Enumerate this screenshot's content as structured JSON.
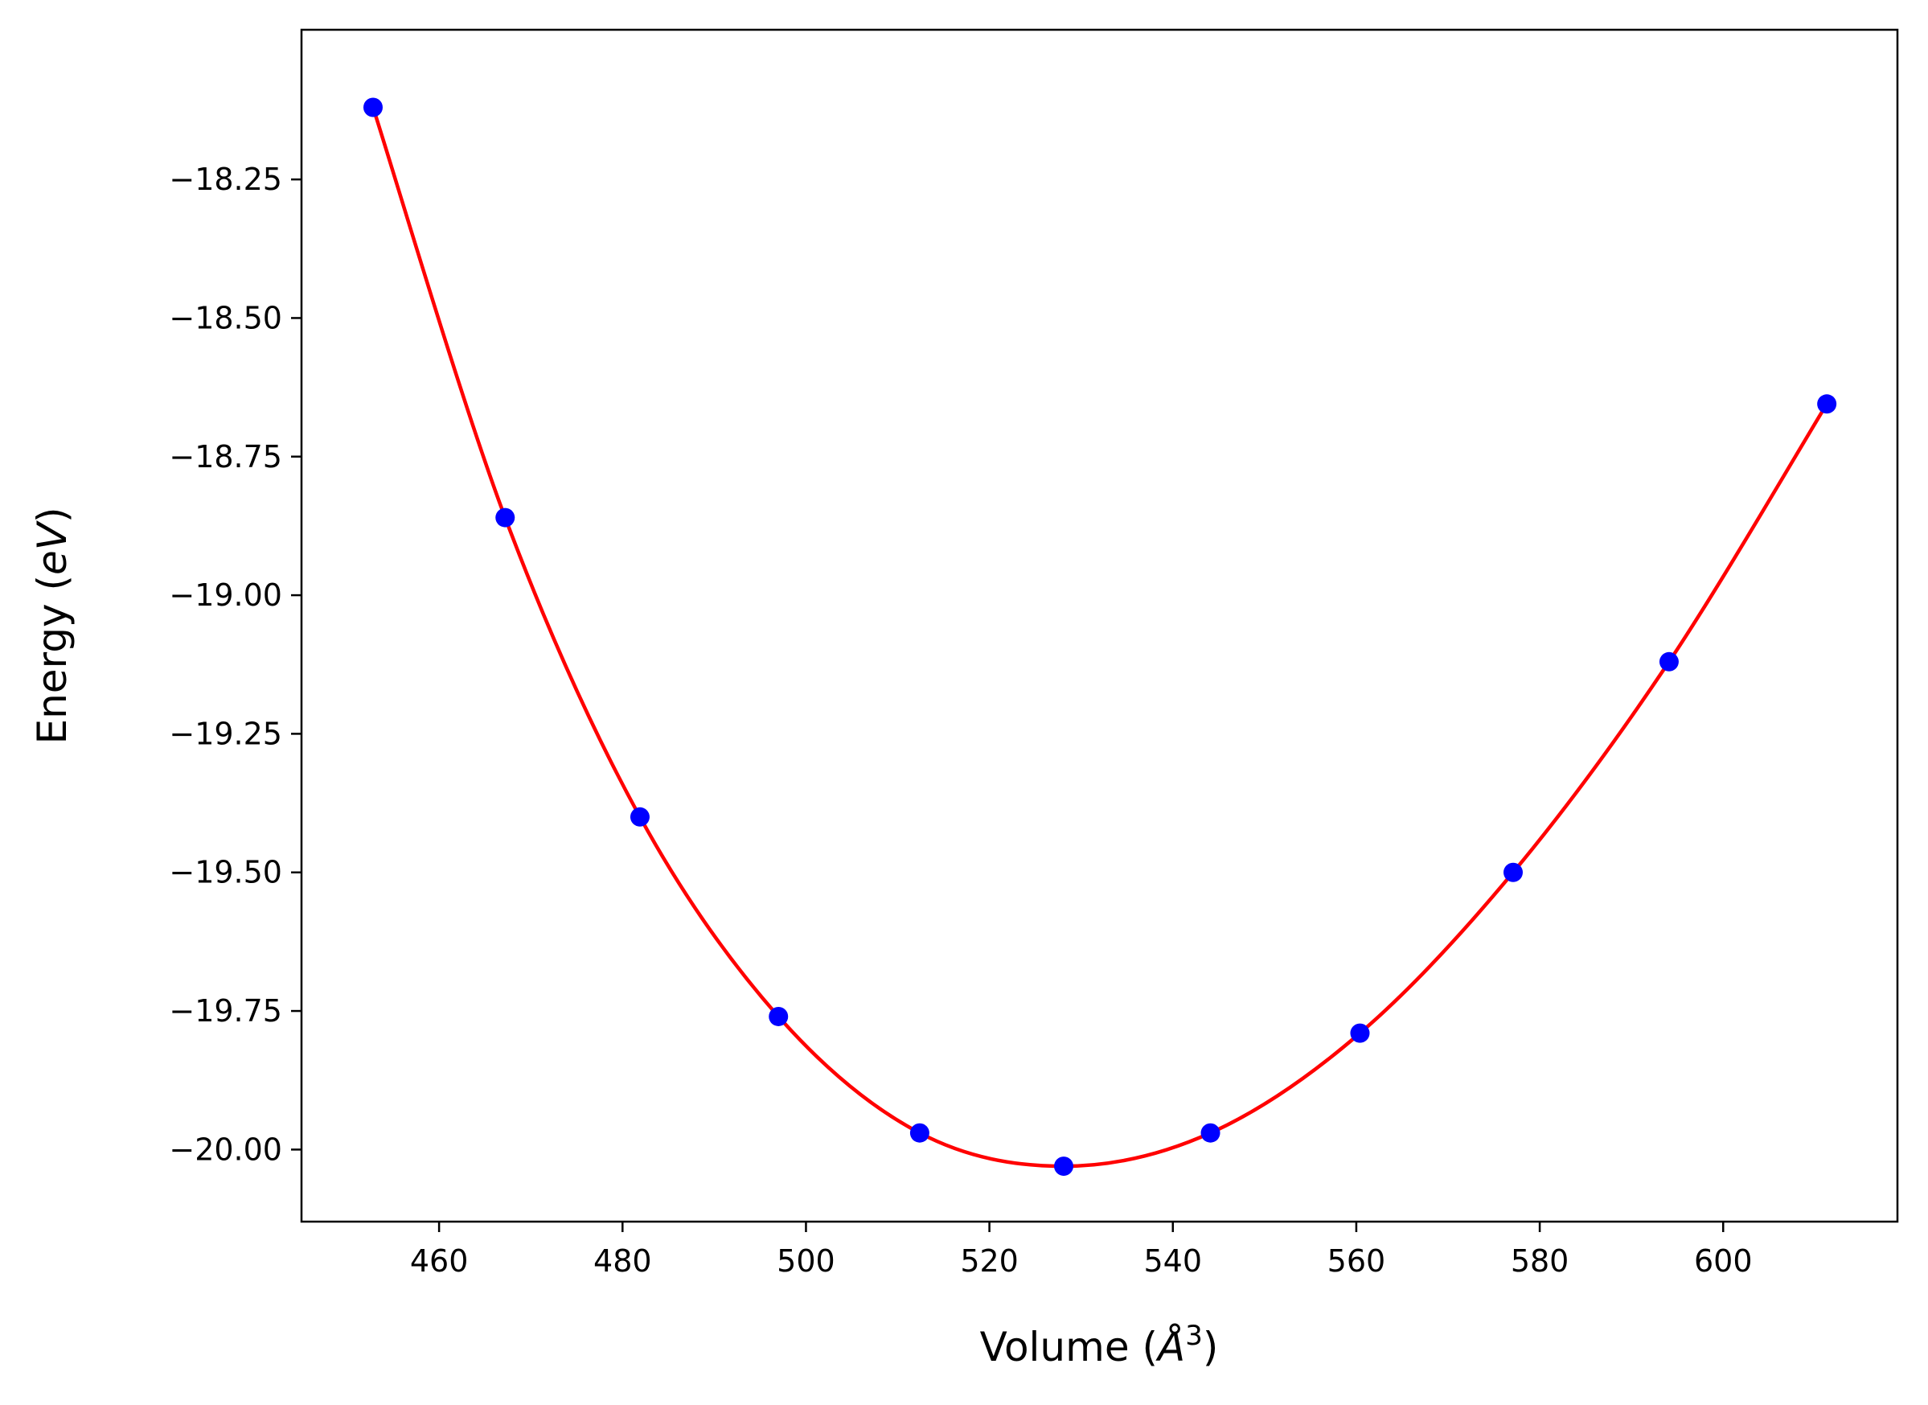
{
  "chart_data": {
    "type": "scatter",
    "title": "",
    "xlabel_text": "Volume (",
    "xlabel_unit": "Å",
    "xlabel_sup": "3",
    "xlabel_close": ")",
    "ylabel_text": "Energy (",
    "ylabel_unit": "eV",
    "ylabel_close": ")",
    "xlim": [
      445,
      619
    ],
    "ylim": [
      -20.13,
      -17.98
    ],
    "xticks": [
      460,
      480,
      500,
      520,
      540,
      560,
      580,
      600
    ],
    "xtick_labels": [
      "460",
      "480",
      "500",
      "520",
      "540",
      "560",
      "580",
      "600"
    ],
    "yticks": [
      -18.25,
      -18.5,
      -18.75,
      -19.0,
      -19.25,
      -19.5,
      -19.75,
      -20.0
    ],
    "ytick_labels": [
      "−18.25",
      "−18.50",
      "−18.75",
      "−19.00",
      "−19.25",
      "−19.50",
      "−19.75",
      "−20.00"
    ],
    "grid": false,
    "series": [
      {
        "type": "scatter",
        "color": "#0000ff",
        "x": [
          452.8,
          467.2,
          481.9,
          497.0,
          512.4,
          528.1,
          544.1,
          560.4,
          577.1,
          594.1,
          611.3
        ],
        "y": [
          -18.12,
          -18.86,
          -19.4,
          -19.76,
          -19.97,
          -20.03,
          -19.97,
          -19.79,
          -19.5,
          -19.12,
          -18.655
        ]
      },
      {
        "type": "line",
        "color": "#ff0000",
        "x": [
          452.8,
          467.2,
          481.9,
          497.0,
          512.4,
          528.1,
          544.1,
          560.4,
          577.1,
          594.1,
          611.3
        ],
        "y": [
          -18.12,
          -18.86,
          -19.4,
          -19.76,
          -19.97,
          -20.03,
          -19.97,
          -19.79,
          -19.5,
          -19.12,
          -18.655
        ]
      }
    ]
  }
}
